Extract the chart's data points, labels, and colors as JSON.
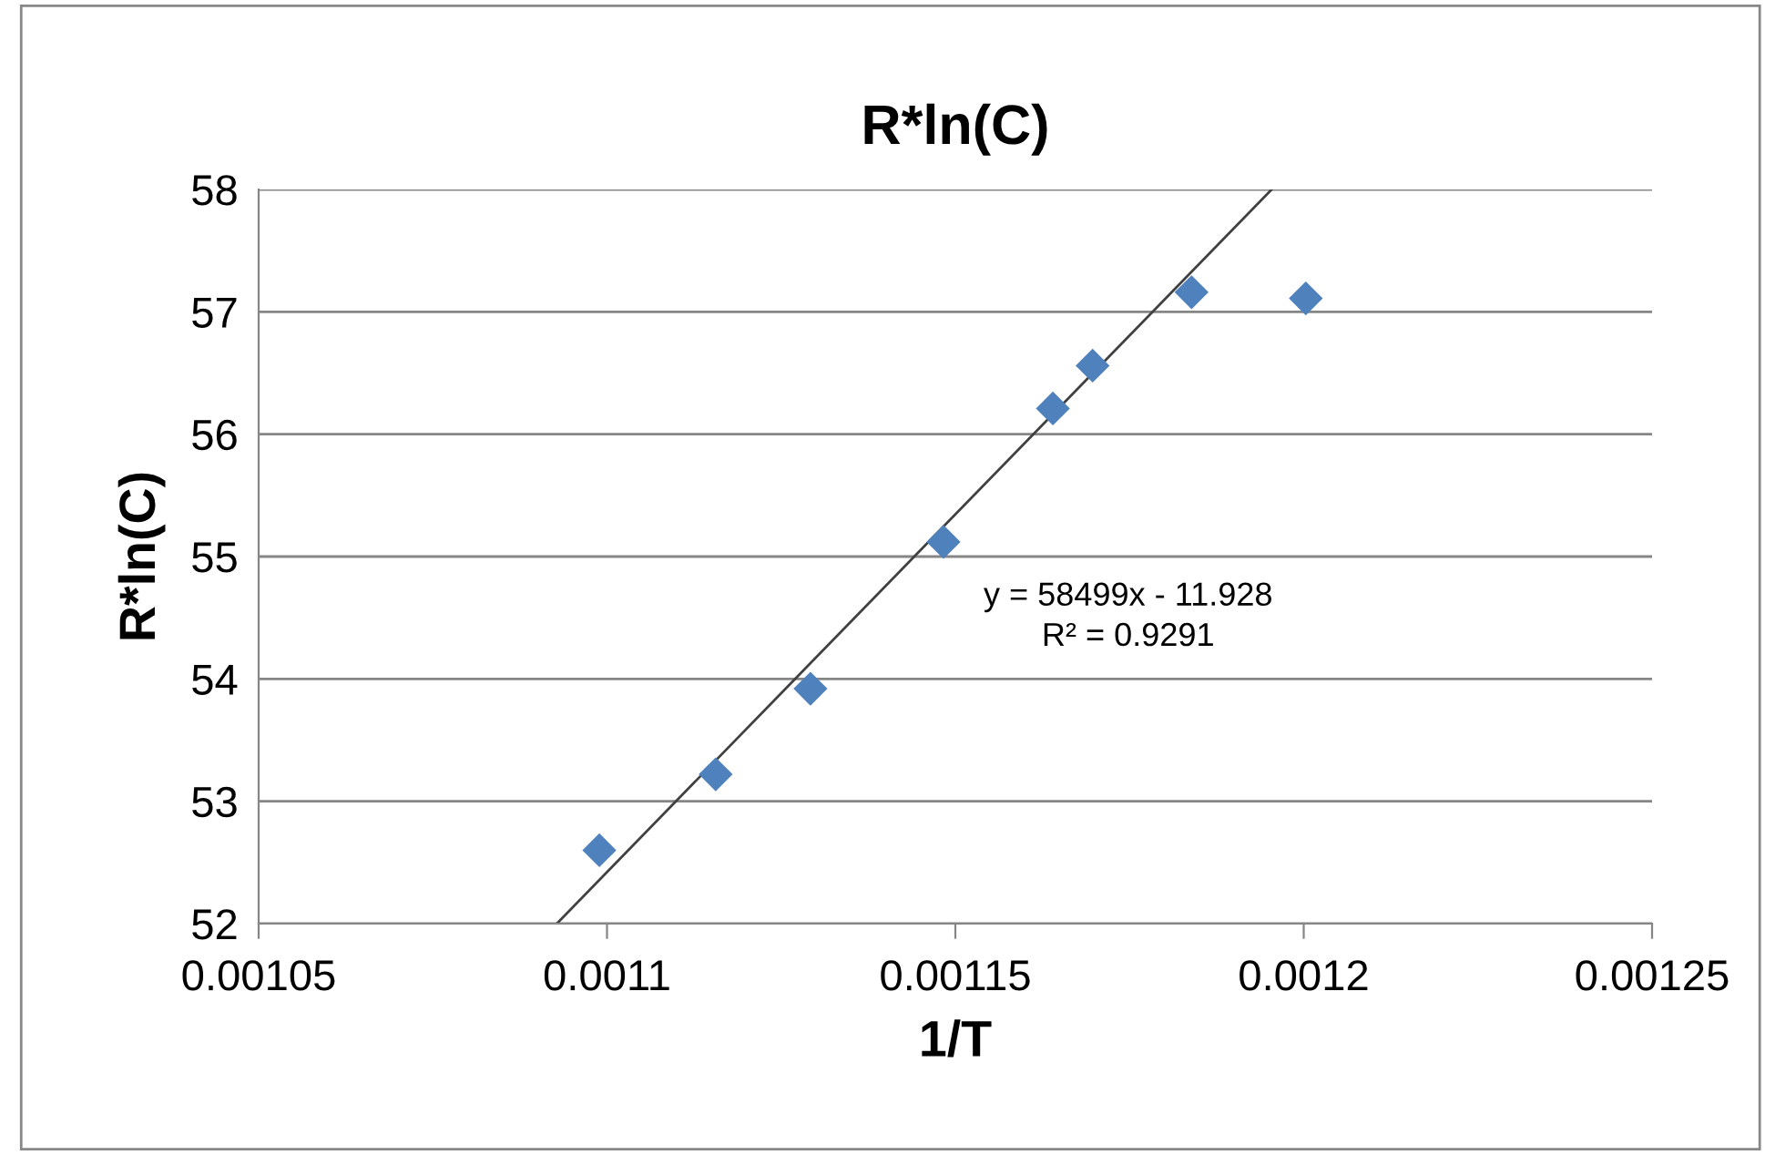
{
  "chart_data": {
    "type": "scatter",
    "title": "R*ln(C)",
    "xlabel": "1/T",
    "ylabel": "R*ln(C)",
    "xlim": [
      0.00105,
      0.00125
    ],
    "xticks": [
      0.00105,
      0.0011,
      0.00115,
      0.0012,
      0.00125
    ],
    "ylim": [
      52,
      58
    ],
    "yticks": [
      52,
      53,
      54,
      55,
      56,
      57,
      58
    ],
    "grid": "y",
    "legend": false,
    "series": [
      {
        "color": "#4f81bd",
        "marker": "diamond",
        "x": [
          0.0010989,
          0.0011156,
          0.0011292,
          0.0011483,
          0.001164,
          0.0011697,
          0.0011839,
          0.0012003
        ],
        "values": [
          52.6,
          53.22,
          53.92,
          55.12,
          56.21,
          56.56,
          57.16,
          57.11
        ]
      },
      {
        "type": "line",
        "color": "#404040",
        "line_style": "solid",
        "x": [
          0.0010928,
          0.0011954
        ],
        "values": [
          52,
          58
        ]
      }
    ],
    "annotations": [
      "y = 58499x - 11.928",
      "R² = 0.9291"
    ]
  }
}
